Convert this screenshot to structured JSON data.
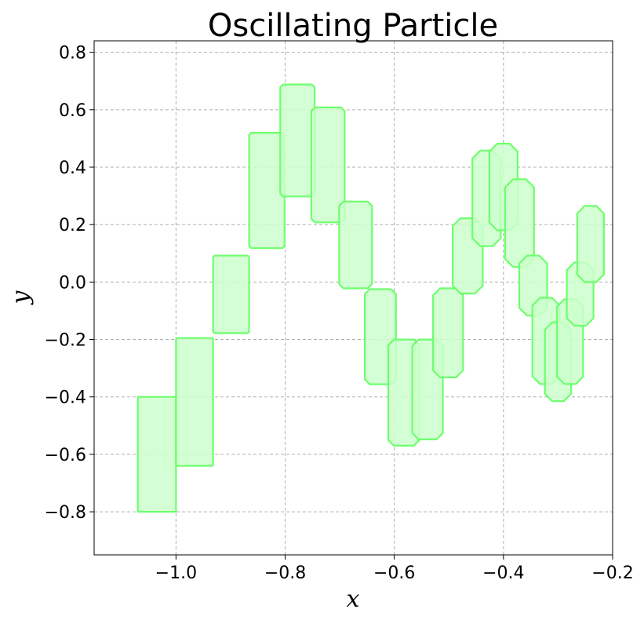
{
  "chart_data": {
    "type": "scatter",
    "title": "Oscillating Particle",
    "xlabel": "x",
    "ylabel": "y",
    "xlim": [
      -1.15,
      -0.2
    ],
    "ylim": [
      -0.95,
      0.84
    ],
    "xticks": [
      -1.0,
      -0.8,
      -0.6,
      -0.4,
      -0.2
    ],
    "xtick_labels": [
      "−1.0",
      "−0.8",
      "−0.6",
      "−0.4",
      "−0.2"
    ],
    "yticks": [
      -0.8,
      -0.6,
      -0.4,
      -0.2,
      0.0,
      0.2,
      0.4,
      0.6,
      0.8
    ],
    "ytick_labels": [
      "−0.8",
      "−0.6",
      "−0.4",
      "−0.2",
      "0.0",
      "0.2",
      "0.4",
      "0.6",
      "0.8"
    ],
    "grid": true,
    "marker": "rounded-rectangle",
    "marker_fill": "#ccffcc",
    "marker_stroke": "#66ff66",
    "points": [
      {
        "x0": -1.07,
        "x1": -1.0,
        "y0": -0.8,
        "y1": -0.4
      },
      {
        "x0": -1.0,
        "x1": -0.932,
        "y0": -0.64,
        "y1": -0.195
      },
      {
        "x0": -0.932,
        "x1": -0.866,
        "y0": -0.178,
        "y1": 0.092
      },
      {
        "x0": -0.866,
        "x1": -0.801,
        "y0": 0.118,
        "y1": 0.52
      },
      {
        "x0": -0.809,
        "x1": -0.746,
        "y0": 0.298,
        "y1": 0.688
      },
      {
        "x0": -0.752,
        "x1": -0.691,
        "y0": 0.208,
        "y1": 0.608
      },
      {
        "x0": -0.701,
        "x1": -0.641,
        "y0": -0.022,
        "y1": 0.28
      },
      {
        "x0": -0.654,
        "x1": -0.597,
        "y0": -0.356,
        "y1": -0.025
      },
      {
        "x0": -0.611,
        "x1": -0.554,
        "y0": -0.57,
        "y1": -0.2
      },
      {
        "x0": -0.567,
        "x1": -0.511,
        "y0": -0.548,
        "y1": -0.2
      },
      {
        "x0": -0.529,
        "x1": -0.474,
        "y0": -0.332,
        "y1": -0.022
      },
      {
        "x0": -0.493,
        "x1": -0.438,
        "y0": -0.04,
        "y1": 0.222
      },
      {
        "x0": -0.457,
        "x1": -0.405,
        "y0": 0.125,
        "y1": 0.458
      },
      {
        "x0": -0.426,
        "x1": -0.374,
        "y0": 0.18,
        "y1": 0.482
      },
      {
        "x0": -0.397,
        "x1": -0.344,
        "y0": 0.052,
        "y1": 0.358
      },
      {
        "x0": -0.371,
        "x1": -0.32,
        "y0": -0.117,
        "y1": 0.092
      },
      {
        "x0": -0.347,
        "x1": -0.297,
        "y0": -0.355,
        "y1": -0.055
      },
      {
        "x0": -0.324,
        "x1": -0.276,
        "y0": -0.415,
        "y1": -0.14
      },
      {
        "x0": -0.302,
        "x1": -0.254,
        "y0": -0.355,
        "y1": -0.06
      },
      {
        "x0": -0.284,
        "x1": -0.235,
        "y0": -0.152,
        "y1": 0.068
      },
      {
        "x0": -0.265,
        "x1": -0.216,
        "y0": 0.0,
        "y1": 0.265
      }
    ]
  }
}
